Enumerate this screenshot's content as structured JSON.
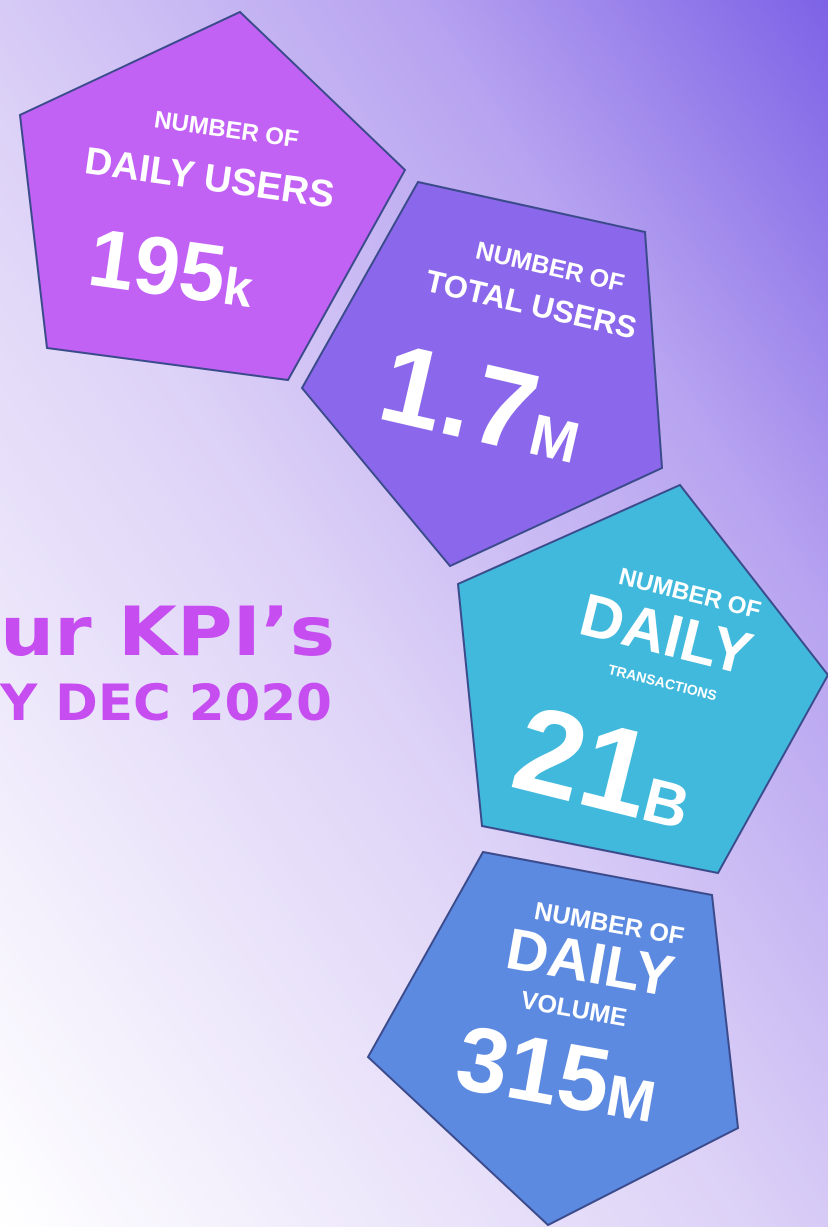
{
  "header": {
    "title": "ur KPI’s",
    "subtitle": "Y DEC 2020"
  },
  "kpis": [
    {
      "prefix": "NUMBER OF",
      "label": "DAILY USERS",
      "value": "195",
      "unit": "k"
    },
    {
      "prefix": "NUMBER OF",
      "label": "TOTAL USERS",
      "value": "1.7",
      "unit": "M"
    },
    {
      "prefix": "NUMBER OF",
      "label": "DAILY",
      "sublabel": "TRANSACTIONS",
      "value": "21",
      "unit": "B"
    },
    {
      "prefix": "NUMBER OF",
      "label": "DAILY",
      "sublabel": "VOLUME",
      "value": "315",
      "unit": "M"
    }
  ]
}
